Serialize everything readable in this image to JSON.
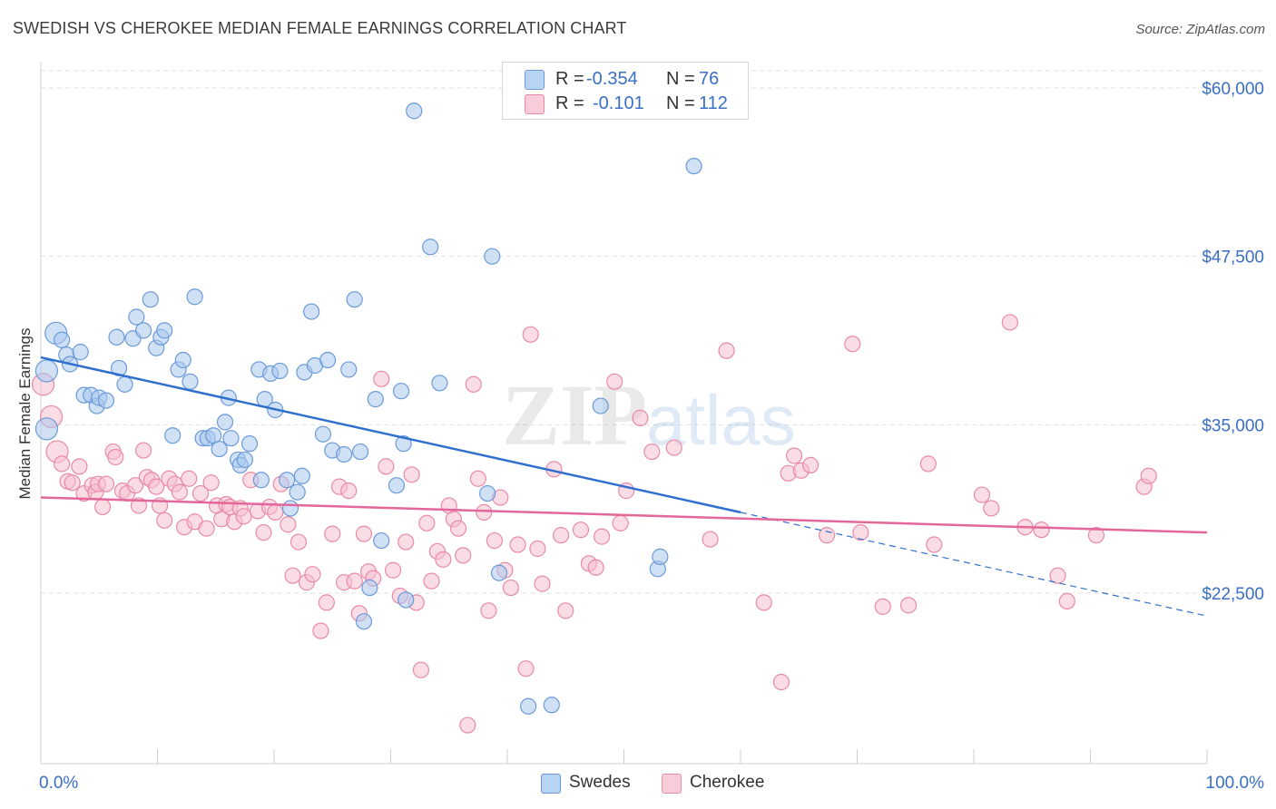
{
  "header": {
    "title": "SWEDISH VS CHEROKEE MEDIAN FEMALE EARNINGS CORRELATION CHART",
    "source": "Source: ZipAtlas.com"
  },
  "legend": {
    "rows": [
      {
        "r_label": "R =",
        "r_value": "-0.354",
        "n_label": "N =",
        "n_value": "76"
      },
      {
        "r_label": "R =",
        "r_value": "-0.101",
        "n_label": "N =",
        "n_value": "112"
      }
    ]
  },
  "watermark": {
    "zip": "ZIP",
    "atlas": "atlas"
  },
  "colors": {
    "swedes_fill": "#a9c8ef",
    "swedes_stroke": "#6b9ad8",
    "swedes_line": "#2f6fce",
    "cherokee_fill": "#f6bfd0",
    "cherokee_stroke": "#e88aa8",
    "cherokee_line": "#e3679a",
    "tick_label": "#3a6fc4",
    "grid": "#e2e2e2"
  },
  "chart_data": {
    "type": "scatter",
    "title": "SWEDISH VS CHEROKEE MEDIAN FEMALE EARNINGS CORRELATION CHART",
    "xlabel": "",
    "ylabel": "Median Female Earnings",
    "xlim": [
      0,
      100
    ],
    "ylim": [
      15000,
      61500
    ],
    "x_tick_labels": [
      "0.0%",
      "100.0%"
    ],
    "y_ticks": [
      22500,
      35000,
      47500,
      60000
    ],
    "y_tick_labels": [
      "$22,500",
      "$35,000",
      "$47,500",
      "$60,000"
    ],
    "grid": true,
    "legend_position": "top-center",
    "series": [
      {
        "name": "Swedes",
        "points": [
          [
            0.5,
            34700
          ],
          [
            0.5,
            39000
          ],
          [
            1.3,
            41800
          ],
          [
            1.8,
            41300
          ],
          [
            2.2,
            40200
          ],
          [
            2.5,
            39500
          ],
          [
            3.4,
            40400
          ],
          [
            3.7,
            37200
          ],
          [
            4.3,
            37200
          ],
          [
            4.8,
            36400
          ],
          [
            5.0,
            37000
          ],
          [
            5.6,
            36800
          ],
          [
            6.5,
            41500
          ],
          [
            6.7,
            39200
          ],
          [
            7.2,
            38000
          ],
          [
            7.9,
            41400
          ],
          [
            8.2,
            43000
          ],
          [
            8.8,
            42000
          ],
          [
            9.4,
            44300
          ],
          [
            9.9,
            40700
          ],
          [
            10.3,
            41500
          ],
          [
            10.6,
            42000
          ],
          [
            11.3,
            34200
          ],
          [
            11.8,
            39100
          ],
          [
            12.2,
            39800
          ],
          [
            12.8,
            38200
          ],
          [
            13.2,
            44500
          ],
          [
            13.9,
            34000
          ],
          [
            14.3,
            34000
          ],
          [
            14.8,
            34200
          ],
          [
            15.3,
            33200
          ],
          [
            15.8,
            35200
          ],
          [
            16.1,
            37000
          ],
          [
            16.3,
            34000
          ],
          [
            16.9,
            32400
          ],
          [
            17.1,
            32000
          ],
          [
            17.5,
            32400
          ],
          [
            17.9,
            33600
          ],
          [
            18.7,
            39100
          ],
          [
            18.9,
            30900
          ],
          [
            19.2,
            36900
          ],
          [
            19.7,
            38800
          ],
          [
            20.1,
            36100
          ],
          [
            20.5,
            39000
          ],
          [
            21.1,
            30900
          ],
          [
            21.4,
            28800
          ],
          [
            22.0,
            30000
          ],
          [
            22.4,
            31200
          ],
          [
            22.6,
            38900
          ],
          [
            23.2,
            43400
          ],
          [
            23.5,
            39400
          ],
          [
            24.2,
            34300
          ],
          [
            24.6,
            39800
          ],
          [
            25.0,
            33100
          ],
          [
            26.0,
            32800
          ],
          [
            26.4,
            39100
          ],
          [
            26.9,
            44300
          ],
          [
            27.4,
            33000
          ],
          [
            27.7,
            20400
          ],
          [
            28.2,
            22900
          ],
          [
            28.7,
            36900
          ],
          [
            29.2,
            26400
          ],
          [
            30.5,
            30500
          ],
          [
            30.9,
            37500
          ],
          [
            31.1,
            33600
          ],
          [
            31.3,
            22000
          ],
          [
            32.0,
            58300
          ],
          [
            33.4,
            48200
          ],
          [
            34.2,
            38100
          ],
          [
            38.3,
            29900
          ],
          [
            38.7,
            47500
          ],
          [
            39.3,
            24000
          ],
          [
            41.8,
            14100
          ],
          [
            43.8,
            14200
          ],
          [
            48.0,
            36400
          ],
          [
            52.9,
            24300
          ],
          [
            53.1,
            25200
          ],
          [
            56.0,
            54200
          ]
        ]
      },
      {
        "name": "Cherokee",
        "points": [
          [
            0.2,
            38000
          ],
          [
            0.9,
            35600
          ],
          [
            1.4,
            33000
          ],
          [
            1.8,
            32100
          ],
          [
            2.3,
            30800
          ],
          [
            2.7,
            30700
          ],
          [
            3.3,
            31900
          ],
          [
            3.7,
            29900
          ],
          [
            4.4,
            30500
          ],
          [
            4.7,
            30000
          ],
          [
            4.9,
            30600
          ],
          [
            5.3,
            28900
          ],
          [
            5.6,
            30600
          ],
          [
            6.2,
            33000
          ],
          [
            6.4,
            32600
          ],
          [
            7.0,
            30100
          ],
          [
            7.4,
            29900
          ],
          [
            8.1,
            30500
          ],
          [
            8.4,
            29000
          ],
          [
            8.8,
            33100
          ],
          [
            9.1,
            31100
          ],
          [
            9.5,
            30900
          ],
          [
            9.9,
            30400
          ],
          [
            10.2,
            29000
          ],
          [
            10.6,
            27900
          ],
          [
            11.0,
            31000
          ],
          [
            11.5,
            30600
          ],
          [
            11.9,
            30000
          ],
          [
            12.3,
            27400
          ],
          [
            12.7,
            31000
          ],
          [
            13.2,
            27800
          ],
          [
            13.7,
            29900
          ],
          [
            14.2,
            27300
          ],
          [
            14.6,
            30700
          ],
          [
            15.1,
            29000
          ],
          [
            15.5,
            28000
          ],
          [
            15.9,
            29100
          ],
          [
            16.2,
            28900
          ],
          [
            16.6,
            27800
          ],
          [
            17.1,
            28800
          ],
          [
            17.4,
            28200
          ],
          [
            18.0,
            30900
          ],
          [
            18.6,
            28600
          ],
          [
            19.1,
            27000
          ],
          [
            19.6,
            28900
          ],
          [
            20.1,
            28500
          ],
          [
            20.6,
            30600
          ],
          [
            21.2,
            27600
          ],
          [
            21.6,
            23800
          ],
          [
            22.1,
            26300
          ],
          [
            22.8,
            23300
          ],
          [
            23.3,
            23900
          ],
          [
            24.0,
            19700
          ],
          [
            24.5,
            21800
          ],
          [
            25.0,
            26900
          ],
          [
            25.6,
            30400
          ],
          [
            26.0,
            23300
          ],
          [
            26.4,
            30100
          ],
          [
            26.9,
            23400
          ],
          [
            27.3,
            21000
          ],
          [
            27.7,
            26900
          ],
          [
            28.1,
            24100
          ],
          [
            28.5,
            23600
          ],
          [
            29.2,
            38400
          ],
          [
            29.6,
            31900
          ],
          [
            30.2,
            24200
          ],
          [
            30.8,
            22300
          ],
          [
            31.3,
            26300
          ],
          [
            31.8,
            31300
          ],
          [
            32.2,
            21800
          ],
          [
            32.6,
            16800
          ],
          [
            33.1,
            27700
          ],
          [
            33.5,
            23400
          ],
          [
            34.0,
            25600
          ],
          [
            34.5,
            25000
          ],
          [
            35.0,
            29000
          ],
          [
            35.4,
            28000
          ],
          [
            35.8,
            27300
          ],
          [
            36.2,
            25300
          ],
          [
            36.6,
            12700
          ],
          [
            37.1,
            38000
          ],
          [
            37.5,
            31000
          ],
          [
            38.0,
            28500
          ],
          [
            38.4,
            21200
          ],
          [
            38.9,
            26400
          ],
          [
            39.4,
            29600
          ],
          [
            39.8,
            24200
          ],
          [
            40.3,
            22900
          ],
          [
            40.9,
            26100
          ],
          [
            41.6,
            16900
          ],
          [
            42.0,
            41700
          ],
          [
            42.6,
            25800
          ],
          [
            43.0,
            23200
          ],
          [
            44.0,
            31700
          ],
          [
            44.6,
            26800
          ],
          [
            45.0,
            21200
          ],
          [
            46.3,
            27200
          ],
          [
            47.0,
            24700
          ],
          [
            47.6,
            24400
          ],
          [
            48.1,
            26700
          ],
          [
            49.2,
            38200
          ],
          [
            49.7,
            27700
          ],
          [
            50.2,
            30100
          ],
          [
            51.4,
            35500
          ],
          [
            52.4,
            33000
          ],
          [
            54.3,
            33300
          ],
          [
            57.4,
            26500
          ],
          [
            58.8,
            40500
          ],
          [
            62.0,
            21800
          ],
          [
            63.5,
            15900
          ],
          [
            64.1,
            31400
          ],
          [
            64.6,
            32700
          ],
          [
            65.2,
            31600
          ],
          [
            66.0,
            32000
          ],
          [
            67.4,
            26800
          ],
          [
            69.6,
            41000
          ],
          [
            70.3,
            27000
          ],
          [
            72.2,
            21500
          ],
          [
            74.4,
            21600
          ],
          [
            76.1,
            32100
          ],
          [
            76.6,
            26100
          ],
          [
            80.7,
            29800
          ],
          [
            81.5,
            28800
          ],
          [
            83.1,
            42600
          ],
          [
            84.4,
            27400
          ],
          [
            85.8,
            27200
          ],
          [
            87.2,
            23800
          ],
          [
            88.0,
            21900
          ],
          [
            90.5,
            26800
          ],
          [
            94.6,
            30400
          ],
          [
            95.0,
            31200
          ]
        ]
      }
    ],
    "trend_lines": [
      {
        "series": "Swedes",
        "x": [
          0,
          60
        ],
        "y": [
          40000,
          28500
        ],
        "dashed_extension_to_x": 100,
        "dashed_extension_y": 20800
      },
      {
        "series": "Cherokee",
        "x": [
          0,
          100
        ],
        "y": [
          29600,
          27000
        ]
      }
    ]
  }
}
